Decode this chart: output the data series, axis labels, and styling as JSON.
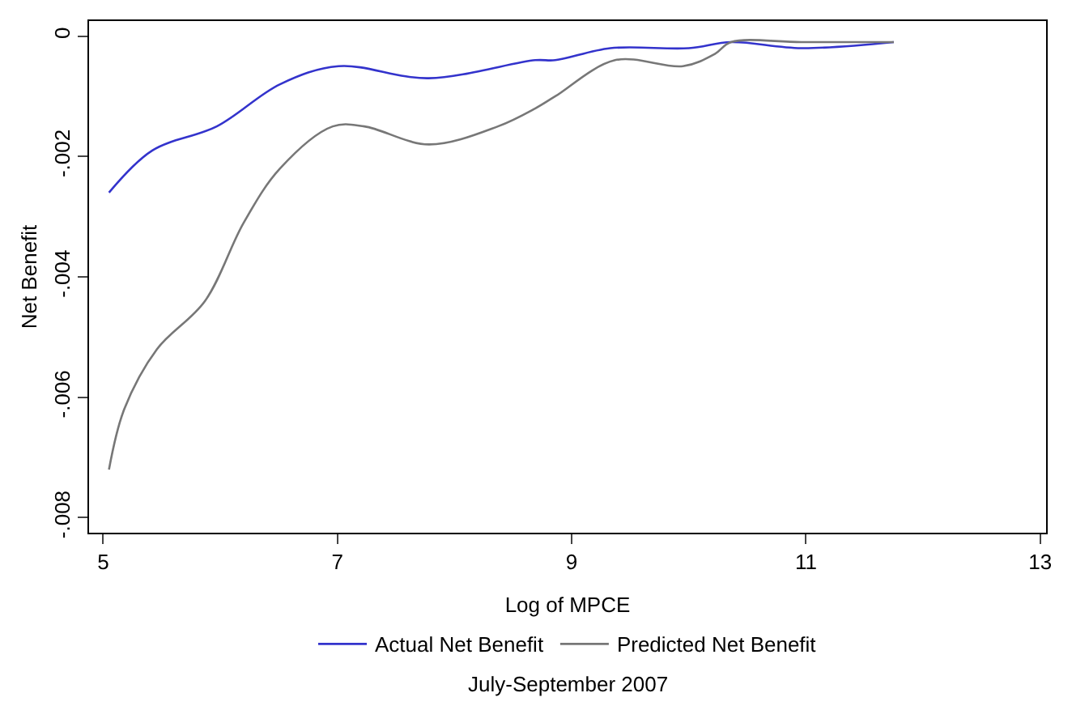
{
  "chart_data": {
    "type": "line",
    "xlabel": "Log of MPCE",
    "ylabel": "Net Benefit",
    "annotations": [
      "July-September 2007"
    ],
    "xlim": [
      4.88,
      13.05
    ],
    "xticks": [
      5,
      7,
      9,
      11,
      13
    ],
    "ylim": [
      -0.00825,
      0.00025
    ],
    "yticks": [
      {
        "value": 0,
        "label": "0"
      },
      {
        "value": -0.002,
        "label": "-.002"
      },
      {
        "value": -0.004,
        "label": "-.004"
      },
      {
        "value": -0.006,
        "label": "-.006"
      },
      {
        "value": -0.008,
        "label": "-.008"
      }
    ],
    "legend": "bottom",
    "marker": "none",
    "line_style": "solid",
    "series": [
      {
        "name": "Actual Net Benefit",
        "color": "#3333cc",
        "x": [
          5.05,
          5.42,
          5.97,
          6.51,
          7.01,
          7.78,
          8.69,
          8.86,
          9.33,
          10.0,
          10.36,
          10.96,
          11.75
        ],
        "values": [
          -0.0026,
          -0.0019,
          -0.0015,
          -0.0008,
          -0.0005,
          -0.0007,
          -0.0004,
          -0.0004,
          -0.0002,
          -0.0002,
          -0.0001,
          -0.0002,
          -0.0001
        ]
      },
      {
        "name": "Predicted Net Benefit",
        "color": "#777777",
        "x": [
          5.05,
          5.18,
          5.46,
          5.87,
          6.2,
          6.51,
          6.96,
          7.23,
          7.78,
          8.37,
          8.69,
          8.86,
          9.37,
          9.95,
          10.22,
          10.36,
          10.96,
          11.75
        ],
        "values": [
          -0.0072,
          -0.0062,
          -0.0052,
          -0.0044,
          -0.0031,
          -0.0022,
          -0.0015,
          -0.0015,
          -0.0018,
          -0.0015,
          -0.0012,
          -0.001,
          -0.0004,
          -0.0005,
          -0.0003,
          -0.0001,
          -0.0001,
          -0.0001
        ]
      }
    ]
  }
}
